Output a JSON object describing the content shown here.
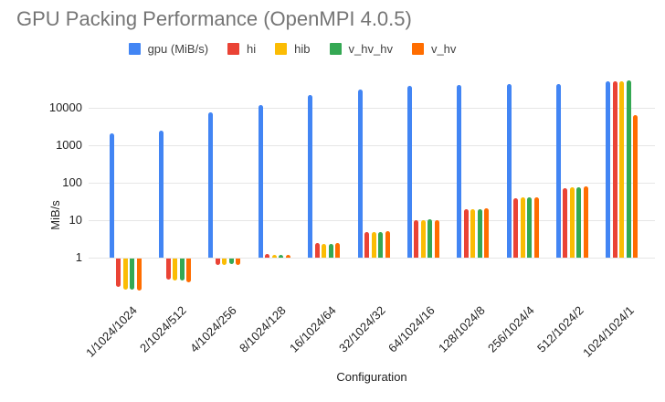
{
  "title": "GPU Packing Performance (OpenMPI 4.0.5)",
  "axis": {
    "x_title": "Configuration",
    "y_title": "MiB/s",
    "y_tick_labels": [
      "1",
      "10",
      "100",
      "1000",
      "10000"
    ]
  },
  "colors": {
    "title_text": "#757575",
    "axis_text": "#222222",
    "legend_text": "#424242",
    "gridline": "#e6e6e6",
    "background": "#ffffff"
  },
  "chart_data": {
    "type": "bar",
    "y_scale": "log",
    "title": "GPU Packing Performance (OpenMPI 4.0.5)",
    "xlabel": "Configuration",
    "ylabel": "MiB/s",
    "ylim": [
      0.1,
      100000
    ],
    "yticks": [
      1,
      10,
      100,
      1000,
      10000
    ],
    "grid": true,
    "legend_position": "top-center",
    "categories": [
      "1/1024/1024",
      "2/1024/512",
      "4/1024/256",
      "8/1024/128",
      "16/1024/64",
      "32/1024/32",
      "64/1024/16",
      "128/1024/8",
      "256/1024/4",
      "512/1024/2",
      "1024/1024/1"
    ],
    "series": [
      {
        "name": "gpu (MiB/s)",
        "color": "#4285F4",
        "values": [
          2100,
          2450,
          7600,
          12000,
          22000,
          31000,
          39000,
          41000,
          43000,
          42000,
          51000
        ]
      },
      {
        "name": "hi",
        "color": "#EA4335",
        "values": [
          0.18,
          0.27,
          0.68,
          1.25,
          2.4,
          4.8,
          10,
          20,
          38,
          72,
          52000
        ]
      },
      {
        "name": "hib",
        "color": "#FBBC04",
        "values": [
          0.15,
          0.26,
          0.68,
          1.2,
          2.3,
          4.8,
          10,
          20,
          41,
          76,
          50000
        ]
      },
      {
        "name": "v_hv_hv",
        "color": "#34A853",
        "values": [
          0.15,
          0.26,
          0.72,
          1.2,
          2.3,
          4.8,
          10.5,
          20,
          41,
          74,
          53000
        ]
      },
      {
        "name": "v_hv",
        "color": "#FF6D00",
        "values": [
          0.14,
          0.23,
          0.68,
          1.2,
          2.4,
          5.0,
          10,
          21,
          41,
          79,
          6400
        ]
      }
    ]
  }
}
